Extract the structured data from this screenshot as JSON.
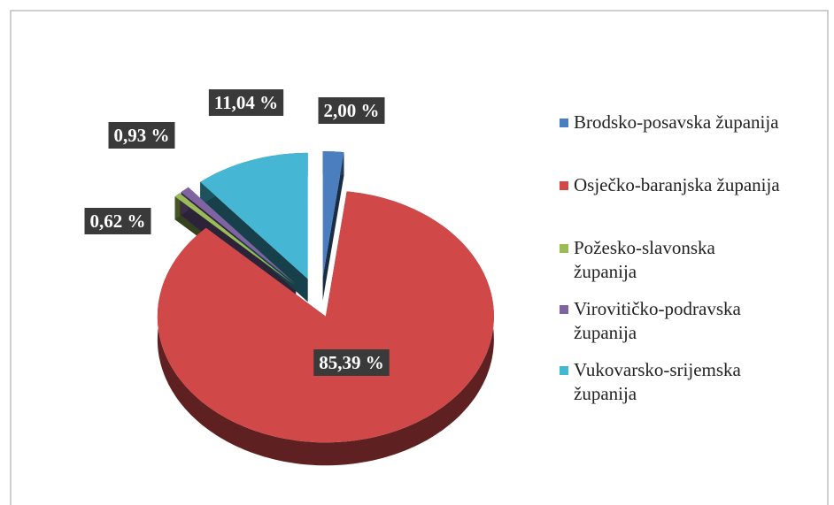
{
  "chart_data": {
    "type": "pie3d",
    "categories": [
      "Brodsko-posavska županija",
      "Osječko-baranjska županija",
      "Požesko-slavonska županija",
      "Virovitičko-podravska županija",
      "Vukovarsko-srijemska županija"
    ],
    "values": [
      2.0,
      85.39,
      0.62,
      0.93,
      11.04
    ],
    "value_labels": [
      "2,00 %",
      "85,39 %",
      "0,62 %",
      "0,93 %",
      "11,04 %"
    ],
    "colors": [
      "#4a7ebf",
      "#d04848",
      "#9bbb59",
      "#8064a2",
      "#45b6d4"
    ],
    "legend": "right"
  }
}
